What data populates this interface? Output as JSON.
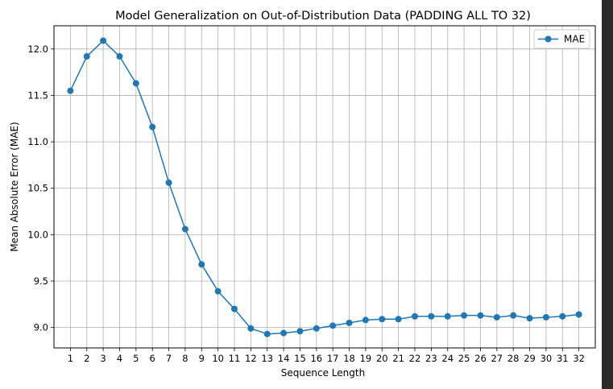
{
  "chart_data": {
    "type": "line",
    "title": "Model Generalization on Out-of-Distribution Data (PADDING ALL TO 32)",
    "xlabel": "Sequence Length",
    "ylabel": "Mean Absolute Error (MAE)",
    "x": [
      1,
      2,
      3,
      4,
      5,
      6,
      7,
      8,
      9,
      10,
      11,
      12,
      13,
      14,
      15,
      16,
      17,
      18,
      19,
      20,
      21,
      22,
      23,
      24,
      25,
      26,
      27,
      28,
      29,
      30,
      31,
      32
    ],
    "x_tick_labels": [
      "1",
      "2",
      "3",
      "4",
      "5",
      "6",
      "7",
      "8",
      "9",
      "10",
      "11",
      "12",
      "13",
      "14",
      "15",
      "16",
      "17",
      "18",
      "19",
      "20",
      "21",
      "22",
      "23",
      "24",
      "25",
      "26",
      "27",
      "28",
      "29",
      "30",
      "31",
      "32"
    ],
    "y_tick_values": [
      9.0,
      9.5,
      10.0,
      10.5,
      11.0,
      11.5,
      12.0
    ],
    "y_tick_labels": [
      "9.0",
      "9.5",
      "10.0",
      "10.5",
      "11.0",
      "11.5",
      "12.0"
    ],
    "xlim": [
      0,
      33
    ],
    "ylim": [
      8.78,
      12.25
    ],
    "grid": true,
    "legend_position": "top-right",
    "series": [
      {
        "name": "MAE",
        "color": "#1f77b4",
        "marker": "circle",
        "values": [
          11.55,
          11.92,
          12.09,
          11.92,
          11.63,
          11.16,
          10.56,
          10.06,
          9.68,
          9.39,
          9.2,
          8.99,
          8.93,
          8.94,
          8.96,
          8.99,
          9.02,
          9.05,
          9.08,
          9.09,
          9.09,
          9.12,
          9.12,
          9.12,
          9.13,
          9.13,
          9.11,
          9.13,
          9.1,
          9.11,
          9.12,
          9.14
        ]
      }
    ]
  }
}
